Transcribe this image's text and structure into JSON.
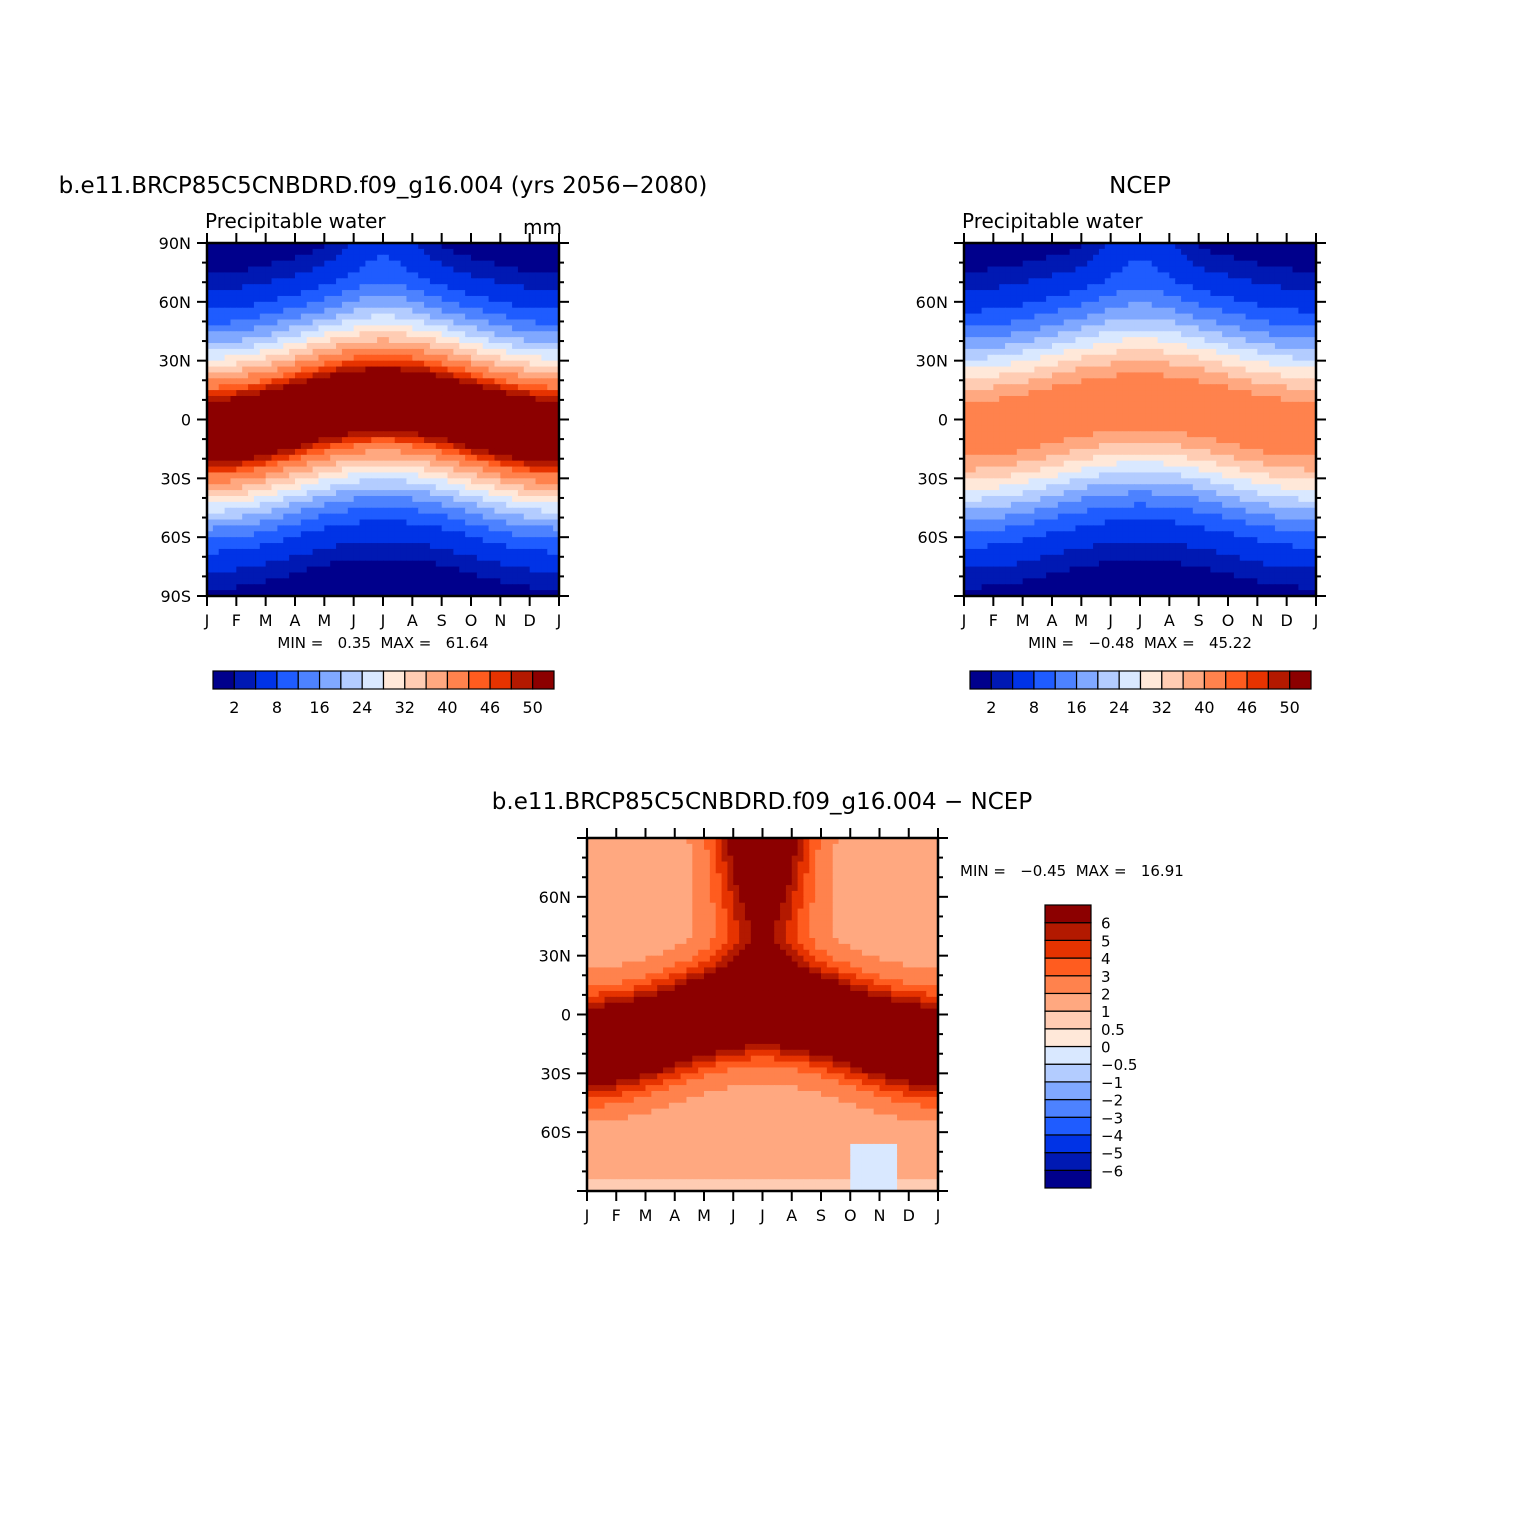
{
  "page": {
    "panel_a_title": "b.e11.BRCP85C5CNBDRD.f09_g16.004 (yrs 2056−2080)",
    "panel_b_title": "NCEP",
    "panel_c_title": "b.e11.BRCP85C5CNBDRD.f09_g16.004 − NCEP"
  },
  "colors": {
    "abs_scale": [
      "#00008c",
      "#0019b3",
      "#0033e6",
      "#1f5cff",
      "#4d82ff",
      "#80a8ff",
      "#b3ccff",
      "#d9e8ff",
      "#ffe8d9",
      "#ffccb3",
      "#ffa880",
      "#ff824d",
      "#ff5c1f",
      "#e63300",
      "#b31900",
      "#8c0000"
    ],
    "diff_scale": [
      "#00008c",
      "#0019b3",
      "#0033e6",
      "#1f5cff",
      "#4d82ff",
      "#80a8ff",
      "#b3ccff",
      "#d9e8ff",
      "#ffe8d9",
      "#ffccb3",
      "#ffa880",
      "#ff824d",
      "#ff5c1f",
      "#e63300",
      "#b31900",
      "#8c0000"
    ]
  },
  "chart_data": [
    {
      "type": "heatmap",
      "title": "b.e11.BRCP85C5CNBDRD.f09_g16.004 (yrs 2056−2080)",
      "left_label": "Precipitable water",
      "right_label": "mm",
      "x_ticks": [
        "J",
        "F",
        "M",
        "A",
        "M",
        "J",
        "J",
        "A",
        "S",
        "O",
        "N",
        "D",
        "J"
      ],
      "y_ticks": [
        "90N",
        "60N",
        "30N",
        "0",
        "30S",
        "60S",
        "90S"
      ],
      "ylim": [
        -90,
        90
      ],
      "minmax": "MIN =   0.35  MAX =   61.64",
      "min": 0.35,
      "max": 61.64,
      "levels": [
        2,
        4,
        8,
        12,
        16,
        20,
        24,
        28,
        32,
        36,
        40,
        44,
        46,
        48,
        50
      ],
      "level_labels": [
        "2",
        "8",
        "16",
        "24",
        "32",
        "40",
        "46",
        "50"
      ],
      "field": {
        "eq": 25,
        "amp": 8,
        "peak_month": 7,
        "width": 44,
        "peak": 57,
        "pole": 1
      }
    },
    {
      "type": "heatmap",
      "title": "NCEP",
      "left_label": "Precipitable water",
      "x_ticks": [
        "J",
        "F",
        "M",
        "A",
        "M",
        "J",
        "J",
        "A",
        "S",
        "O",
        "N",
        "D",
        "J"
      ],
      "y_ticks": [
        "60N",
        "30N",
        "0",
        "30S",
        "60S"
      ],
      "ylim": [
        -90,
        90
      ],
      "minmax": "MIN =   −0.48  MAX =   45.22",
      "min": -0.48,
      "max": 45.22,
      "levels": [
        2,
        4,
        8,
        12,
        16,
        20,
        24,
        28,
        32,
        36,
        40,
        44,
        46,
        48,
        50
      ],
      "level_labels": [
        "2",
        "8",
        "16",
        "24",
        "32",
        "40",
        "46",
        "50"
      ],
      "field": {
        "eq": 25,
        "amp": 7,
        "peak_month": 7,
        "width": 46,
        "peak": 44,
        "pole": 1
      }
    },
    {
      "type": "heatmap",
      "title": "b.e11.BRCP85C5CNBDRD.f09_g16.004 − NCEP",
      "x_ticks": [
        "J",
        "F",
        "M",
        "A",
        "M",
        "J",
        "J",
        "A",
        "S",
        "O",
        "N",
        "D",
        "J"
      ],
      "y_ticks": [
        "60N",
        "30N",
        "0",
        "30S",
        "60S"
      ],
      "ylim": [
        -90,
        90
      ],
      "minmax": "MIN =   −0.45  MAX =   16.91",
      "min": -0.45,
      "max": 16.91,
      "levels": [
        -6,
        -5,
        -4,
        -3,
        -2,
        -1,
        -0.5,
        0,
        0.5,
        1,
        2,
        3,
        4,
        5,
        6
      ],
      "level_labels": [
        "−6",
        "−5",
        "−4",
        "−3",
        "−2",
        "−1",
        "−0.5",
        "0",
        "0.5",
        "1",
        "2",
        "3",
        "4",
        "5",
        "6"
      ]
    }
  ]
}
